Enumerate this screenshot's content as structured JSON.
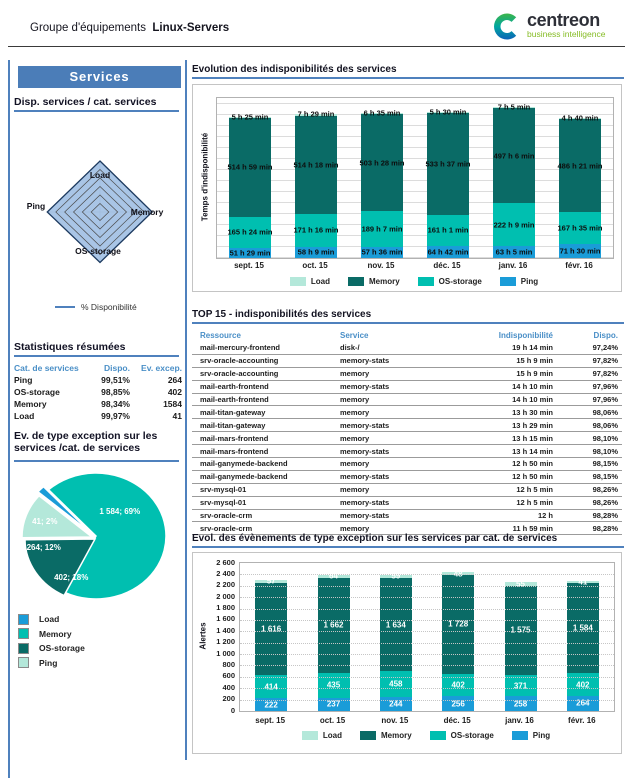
{
  "header": {
    "title_prefix": "Groupe d'équipements",
    "title_group": "Linux-Servers"
  },
  "logo": {
    "brand": "centreon",
    "tagline": "business intelligence"
  },
  "sidebar": {
    "panel_title": "Services",
    "radar_section": {
      "title": "Disp. services / cat. services",
      "legend_label": "% Disponibilité"
    },
    "stats": {
      "title": "Statistiques résumées",
      "headers": [
        "Cat. de services",
        "Dispo.",
        "Ev. excep."
      ],
      "rows": [
        [
          "Ping",
          "99,51%",
          "264"
        ],
        [
          "OS-storage",
          "98,85%",
          "402"
        ],
        [
          "Memory",
          "98,34%",
          "1584"
        ],
        [
          "Load",
          "99,97%",
          "41"
        ]
      ]
    },
    "pie_section": {
      "title_line1": "Ev. de type exception sur les",
      "title_line2": "services /cat. de services",
      "legend": [
        {
          "label": "Load",
          "color": "#1a9cd8"
        },
        {
          "label": "Memory",
          "color": "#00bfb0"
        },
        {
          "label": "OS-storage",
          "color": "#0a6b66"
        },
        {
          "label": "Ping",
          "color": "#b4e8da"
        }
      ]
    }
  },
  "main": {
    "section1_title": "Evolution des indisponibilités des services",
    "top15": {
      "title": "TOP 15 - indisponibilités des services",
      "headers": [
        "Ressource",
        "Service",
        "Indisponibilité",
        "Dispo."
      ],
      "rows": [
        [
          "mail-mercury-frontend",
          "disk-/",
          "19 h 14 min",
          "97,24%"
        ],
        [
          "srv-oracle-accounting",
          "memory-stats",
          "15 h 9 min",
          "97,82%"
        ],
        [
          "srv-oracle-accounting",
          "memory",
          "15 h 9 min",
          "97,82%"
        ],
        [
          "mail-earth-frontend",
          "memory-stats",
          "14 h 10 min",
          "97,96%"
        ],
        [
          "mail-earth-frontend",
          "memory",
          "14 h 10 min",
          "97,96%"
        ],
        [
          "mail-titan-gateway",
          "memory",
          "13 h 30 min",
          "98,06%"
        ],
        [
          "mail-titan-gateway",
          "memory-stats",
          "13 h 29 min",
          "98,06%"
        ],
        [
          "mail-mars-frontend",
          "memory",
          "13 h 15 min",
          "98,10%"
        ],
        [
          "mail-mars-frontend",
          "memory-stats",
          "13 h 14 min",
          "98,10%"
        ],
        [
          "mail-ganymede-backend",
          "memory",
          "12 h 50 min",
          "98,15%"
        ],
        [
          "mail-ganymede-backend",
          "memory-stats",
          "12 h 50 min",
          "98,15%"
        ],
        [
          "srv-mysql-01",
          "memory",
          "12 h 5 min",
          "98,26%"
        ],
        [
          "srv-mysql-01",
          "memory-stats",
          "12 h 5 min",
          "98,26%"
        ],
        [
          "srv-oracle-crm",
          "memory-stats",
          "12 h",
          "98,28%"
        ],
        [
          "srv-oracle-crm",
          "memory",
          "11 h 59 min",
          "98,28%"
        ]
      ]
    },
    "section3_title": "Evol. des évènements de type exception sur les services par cat. de services"
  },
  "chart_data": [
    {
      "id": "radar",
      "type": "radar",
      "title": "Disp. services / cat. services",
      "axes": [
        "Load",
        "Memory",
        "OS-storage",
        "Ping"
      ],
      "series_name": "% Disponibilité",
      "values": [
        99.97,
        98.34,
        98.85,
        99.51
      ],
      "max": 100
    },
    {
      "id": "pie",
      "type": "pie",
      "title": "Ev. de type exception sur les services /cat. de services",
      "slices": [
        {
          "label": "Memory",
          "value": 1584,
          "display": "1 584; 69%",
          "color": "#00bfb0"
        },
        {
          "label": "OS-storage",
          "value": 402,
          "display": "402; 18%",
          "color": "#0a6b66"
        },
        {
          "label": "Ping",
          "value": 264,
          "display": "264; 12%",
          "color": "#b4e8da"
        },
        {
          "label": "Load",
          "value": 41,
          "display": "41; 2%",
          "color": "#1a9cd8"
        }
      ]
    },
    {
      "id": "availability",
      "type": "bar",
      "stacked": true,
      "title": "Evolution des indisponibilités des services",
      "ylabel": "Temps d'indisponibilité",
      "xlabel": "",
      "ylim": [
        0,
        836
      ],
      "grid": true,
      "legend_position": "bottom",
      "categories": [
        "sept. 15",
        "oct. 15",
        "nov. 15",
        "déc. 15",
        "janv. 16",
        "févr. 16"
      ],
      "series": [
        {
          "name": "Ping",
          "color": "#1a9cd8",
          "labels": [
            "51 h 29 min",
            "58 h 9 min",
            "57 h 36 min",
            "64 h 42 min",
            "63 h 5 min",
            "71 h 30 min"
          ]
        },
        {
          "name": "OS-storage",
          "color": "#00bfb0",
          "labels": [
            "165 h 24 min",
            "171 h 16 min",
            "189 h 7 min",
            "161 h 1 min",
            "222 h 9 min",
            "167 h 35 min"
          ]
        },
        {
          "name": "Memory",
          "color": "#0a6b66",
          "labels": [
            "514 h 59 min",
            "514 h 18 min",
            "503 h 28 min",
            "533 h 37 min",
            "497 h 6 min",
            "486 h 21 min"
          ]
        },
        {
          "name": "Load",
          "color": "#b4e8da",
          "labels": [
            "5 h 25 min",
            "7 h 29 min",
            "6 h 35 min",
            "5 h 30 min",
            "7 h 5 min",
            "4 h 40 min"
          ]
        }
      ],
      "legend": [
        {
          "label": "Load",
          "color": "#b4e8da"
        },
        {
          "label": "Memory",
          "color": "#0a6b66"
        },
        {
          "label": "OS-storage",
          "color": "#00bfb0"
        },
        {
          "label": "Ping",
          "color": "#1a9cd8"
        }
      ]
    },
    {
      "id": "alerts",
      "type": "bar",
      "stacked": true,
      "title": "Evol. des évènements de type exception sur les services par cat. de services",
      "ylabel": "Alertes",
      "xlabel": "",
      "ylim": [
        0,
        2600
      ],
      "yticks": [
        0,
        200,
        400,
        600,
        800,
        1000,
        1200,
        1400,
        1600,
        1800,
        2000,
        2200,
        2400,
        2600
      ],
      "grid": true,
      "legend_position": "bottom",
      "categories": [
        "sept. 15",
        "oct. 15",
        "nov. 15",
        "déc. 15",
        "janv. 16",
        "févr. 16"
      ],
      "series": [
        {
          "name": "Ping",
          "color": "#1a9cd8",
          "labels": [
            "222",
            "237",
            "244",
            "256",
            "258",
            "264"
          ]
        },
        {
          "name": "OS-storage",
          "color": "#00bfb0",
          "labels": [
            "414",
            "435",
            "458",
            "402",
            "371",
            "402"
          ]
        },
        {
          "name": "Memory",
          "color": "#0a6b66",
          "labels": [
            "1 616",
            "1 662",
            "1 634",
            "1 728",
            "1 575",
            "1 584"
          ]
        },
        {
          "name": "Load",
          "color": "#b4e8da",
          "labels": [
            "57",
            "64",
            "59",
            "48",
            "55",
            "41"
          ]
        }
      ],
      "legend": [
        {
          "label": "Load",
          "color": "#b4e8da"
        },
        {
          "label": "Memory",
          "color": "#0a6b66"
        },
        {
          "label": "OS-storage",
          "color": "#00bfb0"
        },
        {
          "label": "Ping",
          "color": "#1a9cd8"
        }
      ]
    }
  ]
}
